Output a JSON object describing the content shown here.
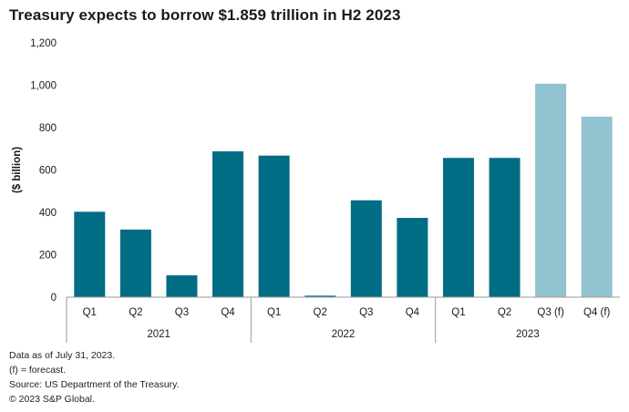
{
  "title": "Treasury expects to borrow $1.859 trillion in H2 2023",
  "notes": [
    "Data as of July 31, 2023.",
    "(f) = forecast.",
    "Source: US Department of the Treasury.",
    "© 2023 S&P Global."
  ],
  "colors": {
    "actual": "#006d85",
    "forecast": "#91c3d0",
    "axis": "#9a9a9a",
    "text": "#1a1a1a"
  },
  "chart_data": {
    "type": "bar",
    "title": "Treasury expects to borrow $1.859 trillion in H2 2023",
    "ylabel": "($ billion)",
    "xlabel": "",
    "ylim": [
      0,
      1200
    ],
    "yticks": [
      0,
      200,
      400,
      600,
      800,
      1000,
      1200
    ],
    "ytick_labels": [
      "0",
      "200",
      "400",
      "600",
      "800",
      "1,000",
      "1,200"
    ],
    "grid": false,
    "categories": [
      "Q1",
      "Q2",
      "Q3",
      "Q4",
      "Q1",
      "Q2",
      "Q3",
      "Q4",
      "Q1",
      "Q2",
      "Q3 (f)",
      "Q4 (f)"
    ],
    "values": [
      403,
      319,
      103,
      688,
      668,
      7,
      457,
      374,
      657,
      657,
      1007,
      852
    ],
    "forecast": [
      false,
      false,
      false,
      false,
      false,
      false,
      false,
      false,
      false,
      false,
      true,
      true
    ],
    "groups": [
      {
        "label": "2021",
        "count": 4
      },
      {
        "label": "2022",
        "count": 4
      },
      {
        "label": "2023",
        "count": 4
      }
    ]
  }
}
